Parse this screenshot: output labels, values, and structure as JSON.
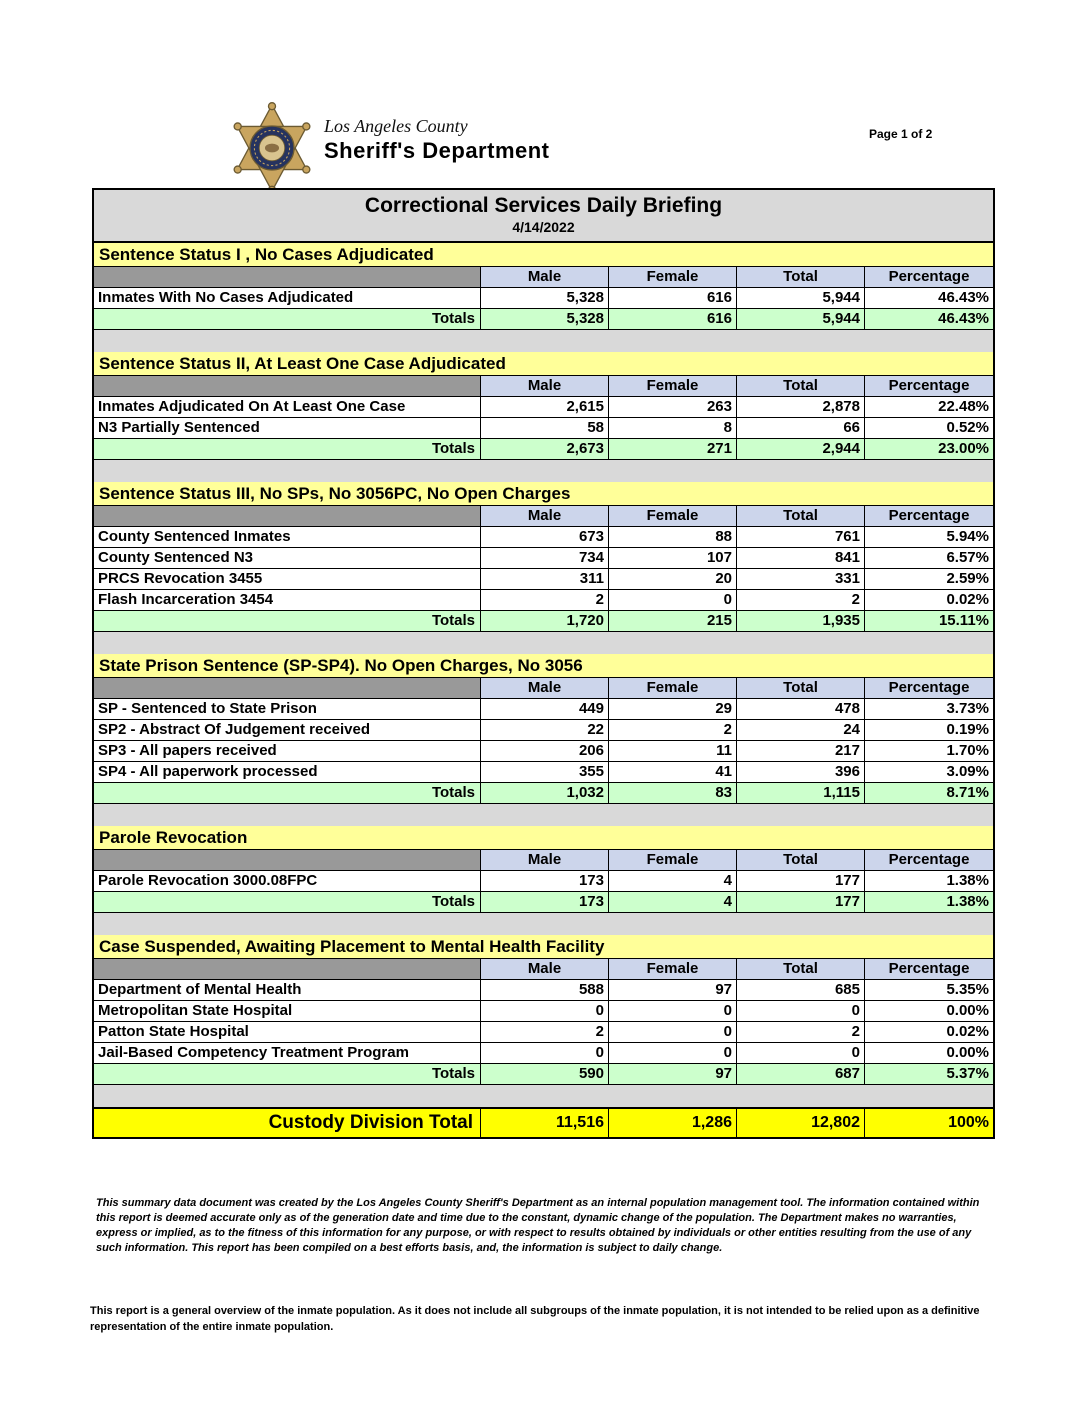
{
  "page": {
    "page_indicator": "Page 1 of 2",
    "logo": {
      "county_line": "Los Angeles County",
      "dept_line": "Sheriff's Department"
    },
    "title": "Correctional Services Daily Briefing",
    "date": "4/14/2022"
  },
  "table": {
    "columns": [
      "Male",
      "Female",
      "Total",
      "Percentage"
    ],
    "totals_label": "Totals",
    "sections": [
      {
        "title": "Sentence Status I , No Cases Adjudicated",
        "rows": [
          {
            "label": "Inmates With No Cases Adjudicated",
            "male": "5,328",
            "female": "616",
            "total": "5,944",
            "percentage": "46.43%"
          }
        ],
        "totals": {
          "male": "5,328",
          "female": "616",
          "total": "5,944",
          "percentage": "46.43%"
        }
      },
      {
        "title": "Sentence Status II, At Least One Case Adjudicated",
        "rows": [
          {
            "label": "Inmates Adjudicated On At Least One Case",
            "male": "2,615",
            "female": "263",
            "total": "2,878",
            "percentage": "22.48%"
          },
          {
            "label": "N3 Partially Sentenced",
            "male": "58",
            "female": "8",
            "total": "66",
            "percentage": "0.52%"
          }
        ],
        "totals": {
          "male": "2,673",
          "female": "271",
          "total": "2,944",
          "percentage": "23.00%"
        }
      },
      {
        "title": "Sentence Status III, No SPs, No 3056PC, No Open Charges",
        "rows": [
          {
            "label": "County Sentenced Inmates",
            "male": "673",
            "female": "88",
            "total": "761",
            "percentage": "5.94%"
          },
          {
            "label": "County Sentenced N3",
            "male": "734",
            "female": "107",
            "total": "841",
            "percentage": "6.57%"
          },
          {
            "label": "PRCS Revocation 3455",
            "male": "311",
            "female": "20",
            "total": "331",
            "percentage": "2.59%"
          },
          {
            "label": "Flash Incarceration 3454",
            "male": "2",
            "female": "0",
            "total": "2",
            "percentage": "0.02%"
          }
        ],
        "totals": {
          "male": "1,720",
          "female": "215",
          "total": "1,935",
          "percentage": "15.11%"
        }
      },
      {
        "title": "State Prison Sentence (SP-SP4). No Open Charges, No 3056",
        "rows": [
          {
            "label": "SP - Sentenced to State Prison",
            "male": "449",
            "female": "29",
            "total": "478",
            "percentage": "3.73%"
          },
          {
            "label": "SP2 - Abstract Of Judgement received",
            "male": "22",
            "female": "2",
            "total": "24",
            "percentage": "0.19%"
          },
          {
            "label": "SP3 - All papers received",
            "male": "206",
            "female": "11",
            "total": "217",
            "percentage": "1.70%"
          },
          {
            "label": "SP4 - All paperwork processed",
            "male": "355",
            "female": "41",
            "total": "396",
            "percentage": "3.09%"
          }
        ],
        "totals": {
          "male": "1,032",
          "female": "83",
          "total": "1,115",
          "percentage": "8.71%"
        }
      },
      {
        "title": "Parole Revocation",
        "rows": [
          {
            "label": "Parole Revocation 3000.08FPC",
            "male": "173",
            "female": "4",
            "total": "177",
            "percentage": "1.38%"
          }
        ],
        "totals": {
          "male": "173",
          "female": "4",
          "total": "177",
          "percentage": "1.38%"
        }
      },
      {
        "title": "Case Suspended, Awaiting Placement to Mental Health Facility",
        "rows": [
          {
            "label": "Department of Mental Health",
            "male": "588",
            "female": "97",
            "total": "685",
            "percentage": "5.35%"
          },
          {
            "label": "Metropolitan State Hospital",
            "male": "0",
            "female": "0",
            "total": "0",
            "percentage": "0.00%"
          },
          {
            "label": "Patton State Hospital",
            "male": "2",
            "female": "0",
            "total": "2",
            "percentage": "0.02%"
          },
          {
            "label": "Jail-Based Competency Treatment Program",
            "male": "0",
            "female": "0",
            "total": "0",
            "percentage": "0.00%"
          }
        ],
        "totals": {
          "male": "590",
          "female": "97",
          "total": "687",
          "percentage": "5.37%"
        }
      }
    ],
    "grand_total": {
      "label": "Custody Division Total",
      "male": "11,516",
      "female": "1,286",
      "total": "12,802",
      "percentage": "100%"
    }
  },
  "footer": {
    "disclaimer": "This summary data document was created by the Los Angeles County Sheriff's Department as an internal population management tool.  The information contained within this report is deemed accurate only as of the generation date and time due to the constant, dynamic change of the population.  The Department makes no warranties, express or implied, as to the fitness of this information for any purpose, or with respect to results obtained by individuals or other entities resulting from the use of any such information.  This report has been compiled on a best efforts basis, and, the information is subject to daily change.",
    "note": "This report is a general overview of the inmate population.  As it does not include all subgroups of the inmate population, it is not intended to be relied upon as a definitive representation of the entire inmate population."
  },
  "colors": {
    "section_header_bg": "#FFFF99",
    "column_header_bg": "#CCD5EB",
    "empty_header_bg": "#999999",
    "totals_bg": "#CCFFCC",
    "grand_total_bg": "#FFFF00",
    "title_bar_bg": "#B5BDCA",
    "gap_bg": "#D9D9D9",
    "star_gold": "#C9A55F",
    "ring_navy": "#26335F"
  }
}
